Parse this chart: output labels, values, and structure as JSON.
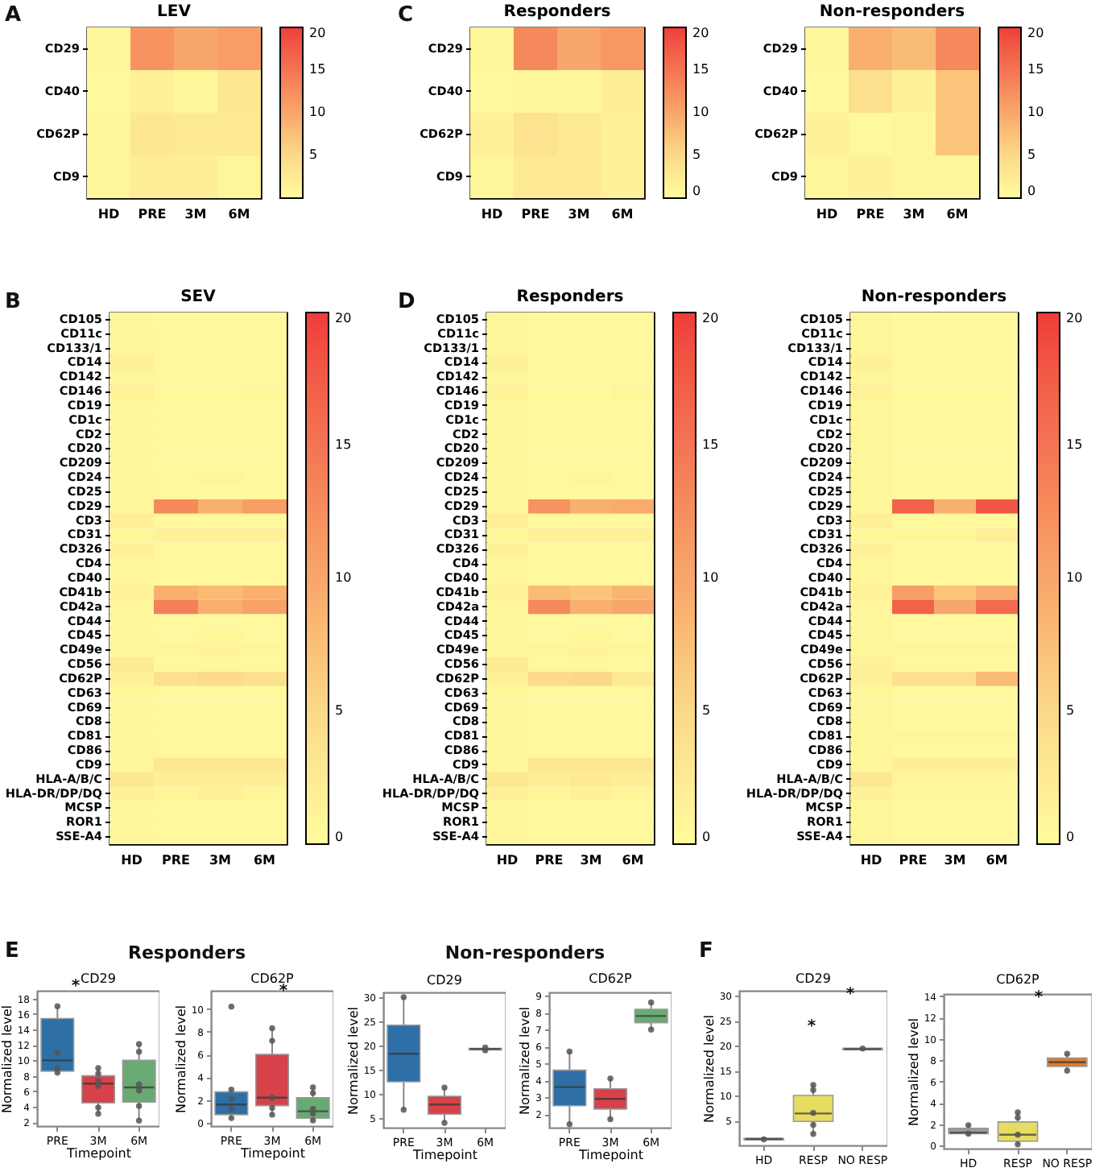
{
  "chart_data": [
    {
      "type": "heatmap",
      "title": "LEV",
      "annotations": [
        "A"
      ],
      "categories": [
        "HD",
        "PRE",
        "3M",
        "6M"
      ],
      "y_categories": [
        "CD29",
        "CD40",
        "CD62P",
        "CD9"
      ],
      "cells": [
        [
          1,
          12,
          10,
          11
        ],
        [
          0.5,
          1.5,
          1,
          3
        ],
        [
          1,
          3,
          2.5,
          2.5
        ],
        [
          1,
          2,
          2,
          1
        ]
      ],
      "clim": [
        0,
        20
      ],
      "cticks": [
        5,
        10,
        15,
        20
      ]
    },
    {
      "type": "heatmap",
      "title": "Responders",
      "annotations": [
        "C"
      ],
      "categories": [
        "HD",
        "PRE",
        "3M",
        "6M"
      ],
      "y_categories": [
        "CD29",
        "CD40",
        "CD62P",
        "CD9"
      ],
      "cells": [
        [
          1,
          13,
          10,
          11.5
        ],
        [
          0.5,
          1,
          0.7,
          2
        ],
        [
          1.5,
          3.5,
          2.5,
          1.5
        ],
        [
          1,
          2.5,
          2.5,
          1.5
        ]
      ],
      "clim": [
        0,
        20
      ],
      "cticks": [
        0,
        5,
        10,
        15,
        20
      ]
    },
    {
      "type": "heatmap",
      "title": "Non-responders",
      "categories": [
        "HD",
        "PRE",
        "3M",
        "6M"
      ],
      "y_categories": [
        "CD29",
        "CD40",
        "CD62P",
        "CD9"
      ],
      "cells": [
        [
          1,
          9,
          8,
          13
        ],
        [
          0.5,
          4,
          1.5,
          7
        ],
        [
          1.5,
          0.5,
          1,
          7
        ],
        [
          1,
          1.5,
          1,
          0.7
        ]
      ],
      "clim": [
        0,
        20
      ],
      "cticks": [
        0,
        5,
        10,
        15,
        20
      ]
    },
    {
      "type": "heatmap",
      "title": "SEV",
      "annotations": [
        "B"
      ],
      "categories": [
        "HD",
        "PRE",
        "3M",
        "6M"
      ],
      "y_categories": [
        "CD105",
        "CD11c",
        "CD133/1",
        "CD14",
        "CD142",
        "CD146",
        "CD19",
        "CD1c",
        "CD2",
        "CD20",
        "CD209",
        "CD24",
        "CD25",
        "CD29",
        "CD3",
        "CD31",
        "CD326",
        "CD4",
        "CD40",
        "CD41b",
        "CD42a",
        "CD44",
        "CD45",
        "CD49e",
        "CD56",
        "CD62P",
        "CD63",
        "CD69",
        "CD8",
        "CD81",
        "CD86",
        "CD9",
        "HLA-A/B/C",
        "HLA-DR/DP/DQ",
        "MCSP",
        "ROR1",
        "SSE-A4"
      ],
      "cells": [
        [
          1,
          0.5,
          0.5,
          0.5
        ],
        [
          1,
          0.5,
          0.5,
          0.5
        ],
        [
          1,
          0.5,
          0.5,
          0.5
        ],
        [
          1.5,
          0.5,
          0.5,
          0.5
        ],
        [
          1,
          0.5,
          0.5,
          0.5
        ],
        [
          1.5,
          0.5,
          0.5,
          1
        ],
        [
          1,
          0.5,
          0.5,
          0.5
        ],
        [
          1,
          0.5,
          0.5,
          0.5
        ],
        [
          1,
          0.5,
          0.5,
          0.5
        ],
        [
          1,
          0.5,
          0.5,
          0.5
        ],
        [
          1,
          0.5,
          0.5,
          0.5
        ],
        [
          1,
          0.5,
          0.8,
          0.5
        ],
        [
          1,
          0.5,
          0.5,
          0.5
        ],
        [
          1,
          13,
          9,
          11
        ],
        [
          2,
          0.5,
          0.5,
          0.5
        ],
        [
          1,
          1.5,
          1.5,
          1.5
        ],
        [
          1.5,
          0.5,
          0.5,
          0.5
        ],
        [
          1,
          0.5,
          0.5,
          0.5
        ],
        [
          1,
          0.5,
          0.5,
          0.5
        ],
        [
          1.5,
          9,
          8,
          9
        ],
        [
          1,
          14,
          9,
          10.5
        ],
        [
          1,
          0.5,
          0.5,
          0.5
        ],
        [
          1,
          0.5,
          0.8,
          0.5
        ],
        [
          1,
          0.8,
          1.2,
          0.8
        ],
        [
          2.5,
          0.5,
          0.5,
          0.5
        ],
        [
          1.5,
          4,
          4.5,
          4
        ],
        [
          1,
          0.5,
          0.5,
          0.5
        ],
        [
          1,
          0.5,
          0.5,
          0.5
        ],
        [
          1,
          0.5,
          0.5,
          0.5
        ],
        [
          1,
          0.5,
          0.5,
          0.5
        ],
        [
          1,
          0.5,
          0.5,
          0.5
        ],
        [
          1,
          3,
          3,
          3
        ],
        [
          3,
          2,
          2,
          2
        ],
        [
          1.5,
          1,
          1.5,
          1
        ],
        [
          1,
          0.5,
          0.5,
          0.5
        ],
        [
          1,
          0.5,
          0.5,
          0.5
        ],
        [
          1,
          0.5,
          0.5,
          0.5
        ]
      ],
      "clim": [
        0,
        20
      ],
      "cticks": [
        0,
        5,
        10,
        15,
        20
      ]
    },
    {
      "type": "heatmap",
      "title": "Responders",
      "annotations": [
        "D"
      ],
      "categories": [
        "HD",
        "PRE",
        "3M",
        "6M"
      ],
      "y_categories": [
        "CD105",
        "CD11c",
        "CD133/1",
        "CD14",
        "CD142",
        "CD146",
        "CD19",
        "CD1c",
        "CD2",
        "CD20",
        "CD209",
        "CD24",
        "CD25",
        "CD29",
        "CD3",
        "CD31",
        "CD326",
        "CD4",
        "CD40",
        "CD41b",
        "CD42a",
        "CD44",
        "CD45",
        "CD49e",
        "CD56",
        "CD62P",
        "CD63",
        "CD69",
        "CD8",
        "CD81",
        "CD86",
        "CD9",
        "HLA-A/B/C",
        "HLA-DR/DP/DQ",
        "MCSP",
        "ROR1",
        "SSE-A4"
      ],
      "cells": [
        [
          1,
          0.5,
          0.5,
          0.5
        ],
        [
          1,
          0.5,
          0.5,
          0.5
        ],
        [
          1,
          0.5,
          0.5,
          0.5
        ],
        [
          1.5,
          0.5,
          0.5,
          0.5
        ],
        [
          1,
          0.5,
          0.5,
          0.5
        ],
        [
          1.5,
          0.5,
          0.5,
          1
        ],
        [
          1,
          0.5,
          0.5,
          0.5
        ],
        [
          1,
          0.5,
          0.5,
          0.5
        ],
        [
          1,
          0.5,
          0.5,
          0.5
        ],
        [
          1,
          0.5,
          0.5,
          0.5
        ],
        [
          1,
          0.5,
          0.5,
          0.5
        ],
        [
          1,
          0.5,
          0.8,
          0.5
        ],
        [
          1,
          0.5,
          0.5,
          0.5
        ],
        [
          1,
          12,
          9,
          9.5
        ],
        [
          2,
          0.5,
          0.5,
          0.5
        ],
        [
          1,
          1.5,
          1.5,
          1.5
        ],
        [
          1.5,
          0.5,
          0.5,
          0.5
        ],
        [
          1,
          0.5,
          0.5,
          0.5
        ],
        [
          1,
          0.5,
          0.5,
          0.5
        ],
        [
          1.5,
          8,
          7,
          8.5
        ],
        [
          1,
          13,
          9,
          10
        ],
        [
          1,
          0.5,
          0.5,
          0.5
        ],
        [
          1,
          0.5,
          0.8,
          0.5
        ],
        [
          1,
          0.8,
          1.2,
          0.8
        ],
        [
          2.5,
          0.5,
          0.5,
          0.5
        ],
        [
          1.5,
          4.5,
          5,
          2.5
        ],
        [
          1,
          0.5,
          0.5,
          0.5
        ],
        [
          1,
          0.5,
          0.5,
          0.5
        ],
        [
          1,
          0.5,
          0.5,
          0.5
        ],
        [
          1,
          0.5,
          0.5,
          0.5
        ],
        [
          1,
          0.5,
          0.5,
          0.5
        ],
        [
          1,
          3,
          3,
          3
        ],
        [
          3,
          2,
          2.5,
          2
        ],
        [
          1.5,
          1,
          1.5,
          1
        ],
        [
          1,
          0.5,
          0.5,
          0.5
        ],
        [
          1,
          0.5,
          0.5,
          0.5
        ],
        [
          1,
          0.5,
          0.5,
          0.5
        ]
      ],
      "clim": [
        0,
        20
      ],
      "cticks": [
        0,
        5,
        10,
        15,
        20
      ]
    },
    {
      "type": "heatmap",
      "title": "Non-responders",
      "categories": [
        "HD",
        "PRE",
        "3M",
        "6M"
      ],
      "y_categories": [
        "CD105",
        "CD11c",
        "CD133/1",
        "CD14",
        "CD142",
        "CD146",
        "CD19",
        "CD1c",
        "CD2",
        "CD20",
        "CD209",
        "CD24",
        "CD25",
        "CD29",
        "CD3",
        "CD31",
        "CD326",
        "CD4",
        "CD40",
        "CD41b",
        "CD42a",
        "CD44",
        "CD45",
        "CD49e",
        "CD56",
        "CD62P",
        "CD63",
        "CD69",
        "CD8",
        "CD81",
        "CD86",
        "CD9",
        "HLA-A/B/C",
        "HLA-DR/DP/DQ",
        "MCSP",
        "ROR1",
        "SSE-A4"
      ],
      "cells": [
        [
          1,
          0.5,
          0.5,
          0.5
        ],
        [
          1,
          0.5,
          0.5,
          0.5
        ],
        [
          1,
          0.5,
          0.5,
          0.5
        ],
        [
          1.5,
          0.5,
          0.5,
          0.5
        ],
        [
          1,
          0.5,
          0.5,
          0.5
        ],
        [
          1.5,
          0.5,
          0.5,
          0.5
        ],
        [
          1,
          0.5,
          0.5,
          0.5
        ],
        [
          1,
          0.5,
          0.5,
          0.5
        ],
        [
          1,
          0.5,
          0.5,
          0.5
        ],
        [
          1,
          0.5,
          0.5,
          0.5
        ],
        [
          1,
          0.5,
          0.5,
          0.5
        ],
        [
          1,
          0.5,
          0.5,
          0.5
        ],
        [
          1,
          0.5,
          0.5,
          0.5
        ],
        [
          1,
          17,
          9,
          18
        ],
        [
          2,
          0.5,
          0.5,
          0.5
        ],
        [
          1,
          1,
          1,
          2
        ],
        [
          1.5,
          0.5,
          0.5,
          0.5
        ],
        [
          1,
          0.5,
          0.5,
          0.5
        ],
        [
          1,
          0.5,
          0.5,
          0.5
        ],
        [
          1.5,
          11,
          7,
          9.5
        ],
        [
          1,
          17,
          10,
          16
        ],
        [
          1,
          0.5,
          0.5,
          0.5
        ],
        [
          1,
          0.5,
          0.5,
          0.5
        ],
        [
          1,
          0.8,
          0.8,
          0.8
        ],
        [
          1.5,
          0.5,
          0.5,
          0.5
        ],
        [
          1.5,
          4,
          4,
          8
        ],
        [
          1,
          0.5,
          0.5,
          0.5
        ],
        [
          1,
          0.5,
          0.5,
          0.5
        ],
        [
          1,
          0.5,
          0.5,
          0.5
        ],
        [
          1,
          0.8,
          0.8,
          0.8
        ],
        [
          1,
          0.5,
          0.5,
          0.5
        ],
        [
          1,
          2,
          2,
          2
        ],
        [
          3,
          1,
          1,
          1
        ],
        [
          1.5,
          0.8,
          0.8,
          1
        ],
        [
          1,
          0.5,
          0.5,
          0.5
        ],
        [
          1,
          0.5,
          0.5,
          0.5
        ],
        [
          1,
          0.5,
          0.5,
          0.5
        ]
      ],
      "clim": [
        0,
        20
      ],
      "cticks": [
        0,
        5,
        10,
        15,
        20
      ]
    },
    {
      "type": "box",
      "title": "CD29",
      "annotations": [
        "E",
        "Responders",
        "*"
      ],
      "xlabel": "Timepoint",
      "ylabel": "Normalized level",
      "categories": [
        "PRE",
        "3M",
        "6M"
      ],
      "colors": [
        "#2e6fa5",
        "#d6414a",
        "#69aa73"
      ],
      "boxes": [
        {
          "low": 8.3,
          "q1": 8.6,
          "median": 10,
          "q3": 15.4,
          "high": 17
        },
        {
          "low": 3.1,
          "q1": 4.5,
          "median": 7,
          "q3": 8,
          "high": 9
        },
        {
          "low": 2.2,
          "q1": 4.6,
          "median": 6.5,
          "q3": 10,
          "high": 12.1
        }
      ],
      "series": [
        {
          "type": "scatter",
          "color": "#555555",
          "x": [
            "PRE",
            "PRE",
            "PRE",
            "PRE",
            "3M",
            "3M",
            "3M",
            "3M",
            "3M",
            "3M",
            "6M",
            "6M",
            "6M",
            "6M",
            "6M",
            "6M"
          ],
          "values": [
            17,
            11,
            9,
            8.4,
            9,
            8.3,
            7.3,
            6.7,
            3.9,
            3.1,
            12.1,
            11.1,
            6.9,
            6.1,
            4.1,
            2.2
          ]
        }
      ],
      "ylim": [
        1.5,
        19
      ],
      "yticks": [
        2,
        4,
        6,
        8,
        10,
        12,
        14,
        16,
        18
      ],
      "grid": false
    },
    {
      "type": "box",
      "title": "CD62P",
      "annotations": [
        "*"
      ],
      "xlabel": "Timepoint",
      "ylabel": "Normalized level",
      "categories": [
        "PRE",
        "3M",
        "6M"
      ],
      "colors": [
        "#2e6fa5",
        "#d6414a",
        "#69aa73"
      ],
      "boxes": [
        {
          "low": 0.3,
          "q1": 0.7,
          "median": 1.6,
          "q3": 2.7,
          "high": 2.9
        },
        {
          "low": 0.7,
          "q1": 1.5,
          "median": 2.2,
          "q3": 6,
          "high": 8.3
        },
        {
          "low": 0.1,
          "q1": 0.4,
          "median": 1,
          "q3": 2.2,
          "high": 3.1
        }
      ],
      "series": [
        {
          "type": "scatter",
          "color": "#555555",
          "x": [
            "PRE",
            "PRE",
            "PRE",
            "PRE",
            "PRE",
            "3M",
            "3M",
            "3M",
            "3M",
            "3M",
            "6M",
            "6M",
            "6M",
            "6M",
            "6M"
          ],
          "values": [
            10.2,
            2.9,
            2.1,
            1.2,
            0.4,
            8.3,
            7.2,
            2.2,
            1.3,
            0.7,
            3.1,
            2.6,
            1.2,
            0.8,
            0.2
          ]
        }
      ],
      "ylim": [
        -0.3,
        11.6
      ],
      "yticks": [
        0,
        2,
        4,
        6,
        8,
        10
      ],
      "grid": false
    },
    {
      "type": "box",
      "title": "CD29",
      "annotations": [
        "Non-responders"
      ],
      "xlabel": "Timepoint",
      "ylabel": "Normalized level",
      "categories": [
        "PRE",
        "3M",
        "6M"
      ],
      "colors": [
        "#2e6fa5",
        "#d6414a",
        "#69aa73"
      ],
      "boxes": [
        {
          "low": 6.7,
          "q1": 12.5,
          "median": 18.3,
          "q3": 24.2,
          "high": 30
        },
        {
          "low": 4,
          "q1": 5.8,
          "median": 7.8,
          "q3": 9.5,
          "high": 11.3
        },
        {
          "low": 19,
          "q1": 19.1,
          "median": 19.3,
          "q3": 19.4,
          "high": 19.6
        }
      ],
      "series": [
        {
          "type": "scatter",
          "color": "#555555",
          "x": [
            "PRE",
            "PRE",
            "3M",
            "3M",
            "6M",
            "6M"
          ],
          "values": [
            30,
            6.7,
            11.3,
            4,
            19.6,
            19
          ]
        }
      ],
      "ylim": [
        3,
        31
      ],
      "yticks": [
        5,
        10,
        15,
        20,
        25,
        30
      ],
      "grid": false
    },
    {
      "type": "box",
      "title": "CD62P",
      "xlabel": "Timepoint",
      "ylabel": "Normalized level",
      "categories": [
        "PRE",
        "3M",
        "6M"
      ],
      "colors": [
        "#2e6fa5",
        "#d6414a",
        "#69aa73"
      ],
      "boxes": [
        {
          "low": 1.4,
          "q1": 2.5,
          "median": 3.6,
          "q3": 4.6,
          "high": 5.7
        },
        {
          "low": 1.7,
          "q1": 2.3,
          "median": 2.9,
          "q3": 3.5,
          "high": 4.1
        },
        {
          "low": 7,
          "q1": 7.4,
          "median": 7.8,
          "q3": 8.2,
          "high": 8.6
        }
      ],
      "series": [
        {
          "type": "scatter",
          "color": "#555555",
          "x": [
            "PRE",
            "PRE",
            "3M",
            "3M",
            "6M",
            "6M"
          ],
          "values": [
            5.7,
            1.4,
            4.1,
            1.7,
            8.6,
            7
          ]
        }
      ],
      "ylim": [
        1.2,
        9.2
      ],
      "yticks": [
        2,
        3,
        4,
        5,
        6,
        7,
        8,
        9
      ],
      "grid": false
    },
    {
      "type": "box",
      "title": "CD29",
      "annotations": [
        "F",
        "*",
        "*"
      ],
      "ylabel": "Normalized level",
      "categories": [
        "HD",
        "RESP",
        "NO RESP"
      ],
      "colors": [
        "#9a9a9a",
        "#e6dc60",
        "#e07b2c"
      ],
      "boxes": [
        {
          "low": 0.9,
          "q1": 1.1,
          "median": 1.3,
          "q3": 1.4,
          "high": 1.6
        },
        {
          "low": 2.3,
          "q1": 4.8,
          "median": 6.4,
          "q3": 10,
          "high": 12.1
        },
        {
          "low": 19,
          "q1": 19.2,
          "median": 19.3,
          "q3": 19.5,
          "high": 19.6
        }
      ],
      "series": [
        {
          "type": "scatter",
          "color": "#555555",
          "x": [
            "HD",
            "RESP",
            "RESP",
            "RESP",
            "RESP",
            "RESP",
            "NO RESP"
          ],
          "values": [
            1.2,
            12.1,
            11.1,
            6.5,
            4.1,
            2.3,
            19.4
          ]
        }
      ],
      "ylim": [
        0,
        31
      ],
      "yticks": [
        5,
        10,
        15,
        20,
        25,
        30
      ],
      "grid": false
    },
    {
      "type": "box",
      "title": "CD62P",
      "annotations": [
        "*"
      ],
      "ylabel": "Normalized level",
      "categories": [
        "HD",
        "RESP",
        "NO RESP"
      ],
      "colors": [
        "#9a9a9a",
        "#e6dc60",
        "#e07b2c"
      ],
      "boxes": [
        {
          "low": 0.9,
          "q1": 1.1,
          "median": 1.2,
          "q3": 1.6,
          "high": 1.9
        },
        {
          "low": 0.1,
          "q1": 0.4,
          "median": 1,
          "q3": 2.2,
          "high": 3.1
        },
        {
          "low": 7,
          "q1": 7.4,
          "median": 7.8,
          "q3": 8.2,
          "high": 8.6
        }
      ],
      "series": [
        {
          "type": "scatter",
          "color": "#555555",
          "x": [
            "HD",
            "HD",
            "RESP",
            "RESP",
            "RESP",
            "RESP",
            "NO RESP",
            "NO RESP"
          ],
          "values": [
            1.9,
            1.1,
            3.1,
            2.6,
            1,
            0.1,
            8.6,
            7
          ]
        }
      ],
      "ylim": [
        -0.3,
        14.2
      ],
      "yticks": [
        0,
        2,
        4,
        6,
        8,
        10,
        12,
        14
      ],
      "grid": false
    }
  ]
}
